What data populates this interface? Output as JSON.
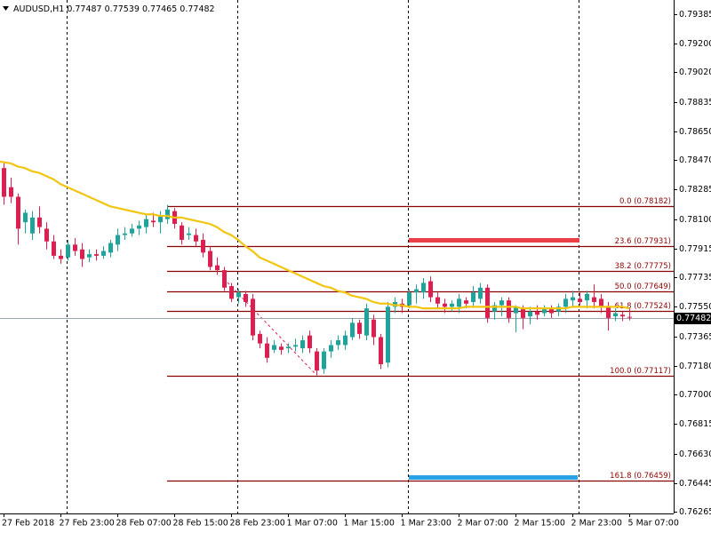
{
  "chart_data": {
    "type": "candlestick",
    "symbol": "AUDUSD,H1",
    "categories": [
      "27 Feb 2018",
      null,
      null,
      null,
      null,
      null,
      null,
      null,
      "27 Feb 23:00",
      null,
      null,
      null,
      null,
      null,
      null,
      null,
      "28 Feb 07:00",
      null,
      null,
      null,
      null,
      null,
      null,
      null,
      "28 Feb 15:00",
      null,
      null,
      null,
      null,
      null,
      null,
      null,
      "28 Feb 23:00",
      null,
      null,
      null,
      null,
      null,
      null,
      null,
      "1 Mar 07:00",
      null,
      null,
      null,
      null,
      null,
      null,
      null,
      "1 Mar 15:00",
      null,
      null,
      null,
      null,
      null,
      null,
      null,
      "1 Mar 23:00",
      null,
      null,
      null,
      null,
      null,
      null,
      null,
      "2 Mar 07:00",
      null,
      null,
      null,
      null,
      null,
      null,
      null,
      "2 Mar 15:00",
      null,
      null,
      null,
      null,
      null,
      null,
      null,
      "2 Mar 23:00",
      null,
      null,
      null,
      null,
      null,
      null,
      null,
      "5 Mar 07:00"
    ],
    "open": [
      0.7842,
      0.783,
      0.7824,
      0.7808,
      0.7801,
      0.7811,
      0.7804,
      0.7796,
      0.7787,
      0.7786,
      0.7794,
      0.7791,
      0.7786,
      0.7788,
      0.7787,
      0.7789,
      0.7794,
      0.78,
      0.7801,
      0.7804,
      0.7805,
      0.7809,
      0.7808,
      0.781,
      0.7815,
      0.7806,
      0.78,
      0.78,
      0.7797,
      0.779,
      0.7781,
      0.7778,
      0.7768,
      0.7761,
      0.7763,
      0.776,
      0.7738,
      0.7732,
      0.7728,
      0.773,
      0.7729,
      0.773,
      0.7729,
      0.7737,
      0.7727,
      0.7716,
      0.7727,
      0.7731,
      0.7731,
      0.7736,
      0.7745,
      0.7737,
      0.7747,
      0.7736,
      0.772,
      0.7755,
      0.7757,
      0.7756,
      0.7764,
      0.7764,
      0.7771,
      0.7761,
      0.7757,
      0.7755,
      0.7755,
      0.7759,
      0.7758,
      0.776,
      0.7767,
      0.7752,
      0.7756,
      0.7759,
      0.7751,
      0.7754,
      0.7749,
      0.7752,
      0.7751,
      0.7754,
      0.7752,
      0.7755,
      0.7759,
      0.776,
      0.7759,
      0.7761,
      0.776,
      0.7755,
      0.7749,
      0.775,
      0.77487
    ],
    "high": [
      0.7845,
      0.7836,
      0.7826,
      0.7816,
      0.7815,
      0.7818,
      0.7808,
      0.78,
      0.7791,
      0.7797,
      0.7798,
      0.7795,
      0.7791,
      0.7791,
      0.7793,
      0.7797,
      0.7804,
      0.7805,
      0.7807,
      0.7809,
      0.7813,
      0.7814,
      0.7815,
      0.7819,
      0.7817,
      0.7808,
      0.7805,
      0.7804,
      0.7801,
      0.7793,
      0.7786,
      0.778,
      0.777,
      0.7766,
      0.7765,
      0.7763,
      0.774,
      0.7736,
      0.7734,
      0.7732,
      0.7732,
      0.7735,
      0.7737,
      0.774,
      0.7729,
      0.7729,
      0.7734,
      0.7737,
      0.774,
      0.7748,
      0.7747,
      0.7757,
      0.775,
      0.7738,
      0.7758,
      0.7761,
      0.776,
      0.7766,
      0.7769,
      0.7773,
      0.7774,
      0.7764,
      0.776,
      0.7759,
      0.7763,
      0.7761,
      0.7768,
      0.777,
      0.7769,
      0.7758,
      0.7761,
      0.7761,
      0.7756,
      0.7756,
      0.7755,
      0.7756,
      0.7756,
      0.7756,
      0.7757,
      0.7763,
      0.7765,
      0.7764,
      0.7765,
      0.7769,
      0.7763,
      0.7758,
      0.7754,
      0.7752,
      0.77539
    ],
    "low": [
      0.7819,
      0.782,
      0.7794,
      0.7801,
      0.7797,
      0.7801,
      0.7791,
      0.7785,
      0.7782,
      0.7784,
      0.7787,
      0.778,
      0.7783,
      0.7784,
      0.7785,
      0.7786,
      0.779,
      0.7797,
      0.7799,
      0.78,
      0.7801,
      0.7805,
      0.7801,
      0.7807,
      0.7804,
      0.7794,
      0.7797,
      0.7793,
      0.7786,
      0.7778,
      0.7775,
      0.7765,
      0.7758,
      0.7757,
      0.7755,
      0.7734,
      0.7729,
      0.772,
      0.7726,
      0.7725,
      0.7726,
      0.7727,
      0.7726,
      0.7726,
      0.7712,
      0.7713,
      0.7723,
      0.7728,
      0.7728,
      0.7734,
      0.7735,
      0.7734,
      0.7731,
      0.7716,
      0.7717,
      0.7751,
      0.7751,
      0.7754,
      0.7757,
      0.776,
      0.7758,
      0.7754,
      0.7751,
      0.7752,
      0.7751,
      0.7754,
      0.7755,
      0.7757,
      0.7745,
      0.7747,
      0.7749,
      0.7745,
      0.7739,
      0.7741,
      0.7744,
      0.7747,
      0.7749,
      0.7748,
      0.7749,
      0.7751,
      0.7755,
      0.7756,
      0.7754,
      0.7754,
      0.7751,
      0.774,
      0.7746,
      0.7746,
      0.77465
    ],
    "close": [
      0.7824,
      0.7824,
      0.7804,
      0.7814,
      0.7811,
      0.7805,
      0.7796,
      0.7787,
      0.7785,
      0.7794,
      0.779,
      0.7785,
      0.7788,
      0.7787,
      0.779,
      0.7795,
      0.78,
      0.7801,
      0.7804,
      0.7806,
      0.781,
      0.7808,
      0.7812,
      0.7816,
      0.7807,
      0.7797,
      0.7801,
      0.7796,
      0.7789,
      0.778,
      0.7778,
      0.7767,
      0.776,
      0.7764,
      0.7758,
      0.7737,
      0.7732,
      0.7723,
      0.7731,
      0.7728,
      0.773,
      0.7731,
      0.7734,
      0.7729,
      0.7715,
      0.7727,
      0.7731,
      0.7734,
      0.7737,
      0.7745,
      0.7738,
      0.7754,
      0.7736,
      0.7719,
      0.7755,
      0.7758,
      0.7755,
      0.7764,
      0.7766,
      0.777,
      0.7761,
      0.7757,
      0.7755,
      0.7757,
      0.776,
      0.7757,
      0.7764,
      0.7767,
      0.7748,
      0.7756,
      0.7759,
      0.7748,
      0.7755,
      0.7748,
      0.7752,
      0.775,
      0.7754,
      0.7751,
      0.7755,
      0.776,
      0.7761,
      0.7758,
      0.7763,
      0.7758,
      0.7755,
      0.7748,
      0.7751,
      0.7749,
      0.77482
    ],
    "color_up": "#20a39a",
    "color_down": "#dc1f4e",
    "ma": {
      "color": "#f2c511",
      "values": [
        0.7846,
        0.7845,
        0.7843,
        0.7842,
        0.784,
        0.7839,
        0.7837,
        0.7835,
        0.7832,
        0.783,
        0.7828,
        0.7826,
        0.7824,
        0.7822,
        0.782,
        0.7818,
        0.7817,
        0.7816,
        0.7815,
        0.7814,
        0.7813,
        0.7813,
        0.7812,
        0.7812,
        0.7811,
        0.7811,
        0.781,
        0.7809,
        0.7808,
        0.7807,
        0.7805,
        0.7802,
        0.78,
        0.7797,
        0.7793,
        0.779,
        0.7786,
        0.7784,
        0.7782,
        0.778,
        0.7778,
        0.7776,
        0.7774,
        0.7772,
        0.777,
        0.7768,
        0.7767,
        0.7765,
        0.7764,
        0.7762,
        0.7761,
        0.776,
        0.7758,
        0.7757,
        0.7757,
        0.7756,
        0.7756,
        0.7755,
        0.7755,
        0.7754,
        0.7754,
        0.7754,
        0.7754,
        0.7754,
        0.7754,
        0.7755,
        0.7755,
        0.7755,
        0.7755,
        0.7755,
        0.7755,
        0.7755,
        0.7755,
        0.7754,
        0.7754,
        0.7754,
        0.7754,
        0.7754,
        0.7754,
        0.7754,
        0.7755,
        0.7755,
        0.7755,
        0.7755,
        0.7755,
        0.7755,
        0.7755,
        0.7755,
        0.7754
      ]
    },
    "fibonacci": {
      "color": "#8b0000",
      "levels": [
        {
          "label": "0.0 (0.78182)",
          "value": 0.78182
        },
        {
          "label": "23.6 (0.77931)",
          "value": 0.77931
        },
        {
          "label": "38.2 (0.77775)",
          "value": 0.77775
        },
        {
          "label": "50.0 (0.77649)",
          "value": 0.77649
        },
        {
          "label": "61.8 (0.77524)",
          "value": 0.77524
        },
        {
          "label": "100.0 (0.77117)",
          "value": 0.77117
        },
        {
          "label": "161.8 (0.76459)",
          "value": 0.76459
        }
      ]
    },
    "ylim": [
      0.76254,
      0.79474
    ],
    "yticks": [
      0.79385,
      {
        "value": 0.792,
        "label": "0.79200"
      },
      {
        "value": 0.7902,
        "label": "0.79020"
      },
      0.78835,
      {
        "value": 0.7865,
        "label": "0.78650"
      },
      {
        "value": 0.7847,
        "label": "0.78470"
      },
      0.78285,
      {
        "value": 0.781,
        "label": "0.78100"
      },
      0.77915,
      0.77735,
      {
        "value": 0.7755,
        "label": "0.77550"
      },
      0.77365,
      {
        "value": 0.7718,
        "label": "0.77180"
      },
      {
        "value": 0.77,
        "label": "0.77000"
      },
      0.76815,
      {
        "value": 0.7663,
        "label": "0.76630"
      },
      0.76445,
      0.76265
    ]
  }
}
